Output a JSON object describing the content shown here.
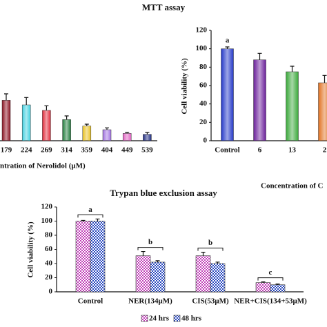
{
  "figure_title": "MTT assay",
  "chart_data": [
    {
      "type": "bar",
      "x_label": "ntration of Nerolidol (μM)",
      "categories": [
        "179",
        "224",
        "269",
        "314",
        "359",
        "404",
        "449",
        "539"
      ],
      "values": [
        44,
        39,
        33,
        23,
        16,
        12,
        8,
        7
      ],
      "errors": [
        7,
        8,
        5,
        4,
        2,
        2,
        1,
        2
      ],
      "colors": [
        "#8b1020",
        "#40d0e0",
        "#e02838",
        "#1e7a3a",
        "#e8c020",
        "#a070e0",
        "#e060c0",
        "#1e2a80"
      ],
      "ylim": [
        0,
        120
      ]
    },
    {
      "type": "bar",
      "y_label": "Cell viability (%)",
      "x_label": "Concentration of C",
      "categories": [
        "Control",
        "6",
        "13",
        "2"
      ],
      "values": [
        100,
        88,
        75,
        63
      ],
      "errors": [
        2,
        7,
        6,
        8
      ],
      "colors": [
        "#2438c8",
        "#6a1e9a",
        "#3aa83a",
        "#e07020"
      ],
      "annotations": [
        "a",
        null,
        null,
        null
      ],
      "ylim": [
        0,
        120
      ],
      "yticks": [
        0,
        20,
        40,
        60,
        80,
        100,
        120
      ]
    },
    {
      "type": "grouped_bar",
      "title": "Trypan blue exclusion assay",
      "y_label": "Cell viability (%)",
      "categories": [
        "Control",
        "NER(134μM)",
        "CIS(53μM)",
        "NER+CIS(134+53μM)"
      ],
      "series": [
        {
          "name": "24 hrs",
          "color": "#c040b8",
          "values": [
            100,
            51,
            51,
            13
          ],
          "errors": [
            1,
            6,
            5,
            1
          ]
        },
        {
          "name": "48 hrs",
          "color": "#2848c0",
          "values": [
            100,
            42,
            40,
            10
          ],
          "errors": [
            3,
            2,
            2,
            1
          ]
        }
      ],
      "annotations": [
        "a",
        "b",
        "b",
        "c"
      ],
      "ylim": [
        0,
        120
      ],
      "yticks": [
        0,
        20,
        40,
        60,
        80,
        100,
        120
      ]
    }
  ]
}
